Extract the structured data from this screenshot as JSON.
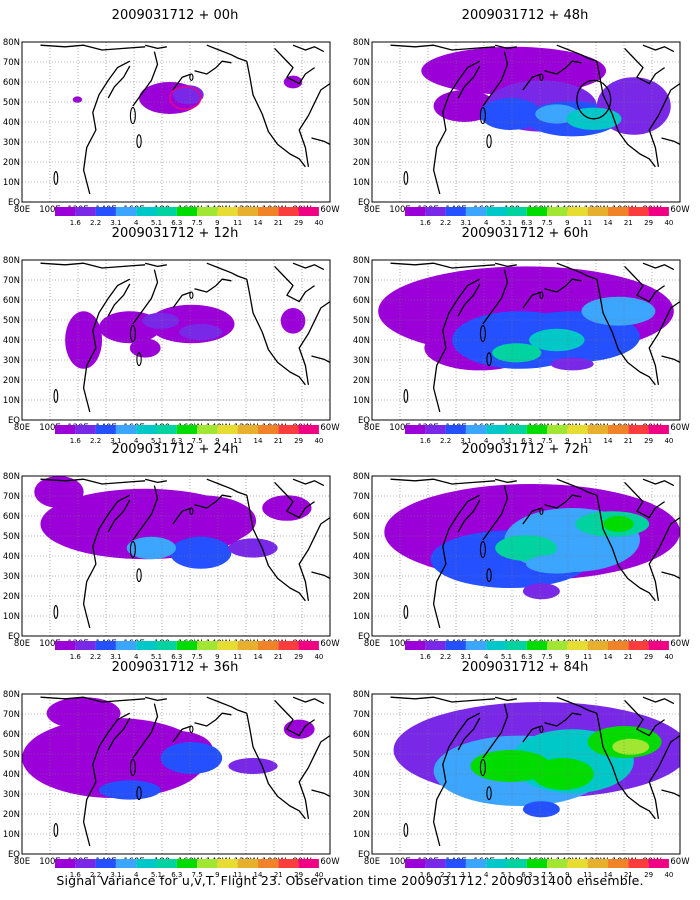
{
  "caption": "Signal Variance for u,v,T. Flight 23. Observation time 2009031712. 2009031400 ensemble.",
  "colorbar": {
    "colors": [
      "#9b00d8",
      "#7a28e8",
      "#2450ff",
      "#3ca6ff",
      "#00c8c8",
      "#00d2a0",
      "#00dc00",
      "#a0e632",
      "#e6dc32",
      "#e6af2d",
      "#f08228",
      "#fa3c3c",
      "#f00082"
    ],
    "labels": [
      "1.6",
      "2.2",
      "3.1",
      "4",
      "5.1",
      "6.3",
      "7.5",
      "9",
      "11",
      "14",
      "21",
      "29",
      "40"
    ]
  },
  "axes": {
    "x_ticks": [
      "80E",
      "100E",
      "120E",
      "140E",
      "160E",
      "180",
      "160W",
      "140W",
      "120W",
      "100W",
      "80W",
      "60W"
    ],
    "y_ticks": [
      "80N",
      "70N",
      "60N",
      "50N",
      "40N",
      "30N",
      "20N",
      "10N",
      "EQ"
    ]
  },
  "panels": [
    {
      "title": "2009031712 + 00h"
    },
    {
      "title": "2009031712 + 48h"
    },
    {
      "title": "2009031712 + 12h"
    },
    {
      "title": "2009031712 + 60h"
    },
    {
      "title": "2009031712 + 24h"
    },
    {
      "title": "2009031712 + 72h"
    },
    {
      "title": "2009031712 + 36h"
    },
    {
      "title": "2009031712 + 84h"
    }
  ],
  "chart_data": {
    "type": "heatmap",
    "title": "Signal Variance for u,v,T. Flight 23. Observation time 2009031712. 2009031400 ensemble.",
    "domain": {
      "lon": [
        "80E",
        "60W"
      ],
      "lat": [
        "EQ",
        "80N"
      ]
    },
    "forecast_hours": [
      "00h",
      "12h",
      "24h",
      "36h",
      "48h",
      "60h",
      "72h",
      "84h"
    ],
    "color_levels": [
      1.6,
      2.2,
      3.1,
      4,
      5.1,
      6.3,
      7.5,
      9,
      11,
      14,
      21,
      29,
      40
    ],
    "max_level_by_panel": {
      "00h": 2.2,
      "12h": 4,
      "24h": 5.1,
      "36h": 5.1,
      "48h": 6.3,
      "60h": 7.5,
      "72h": 11,
      "84h": 11
    }
  }
}
